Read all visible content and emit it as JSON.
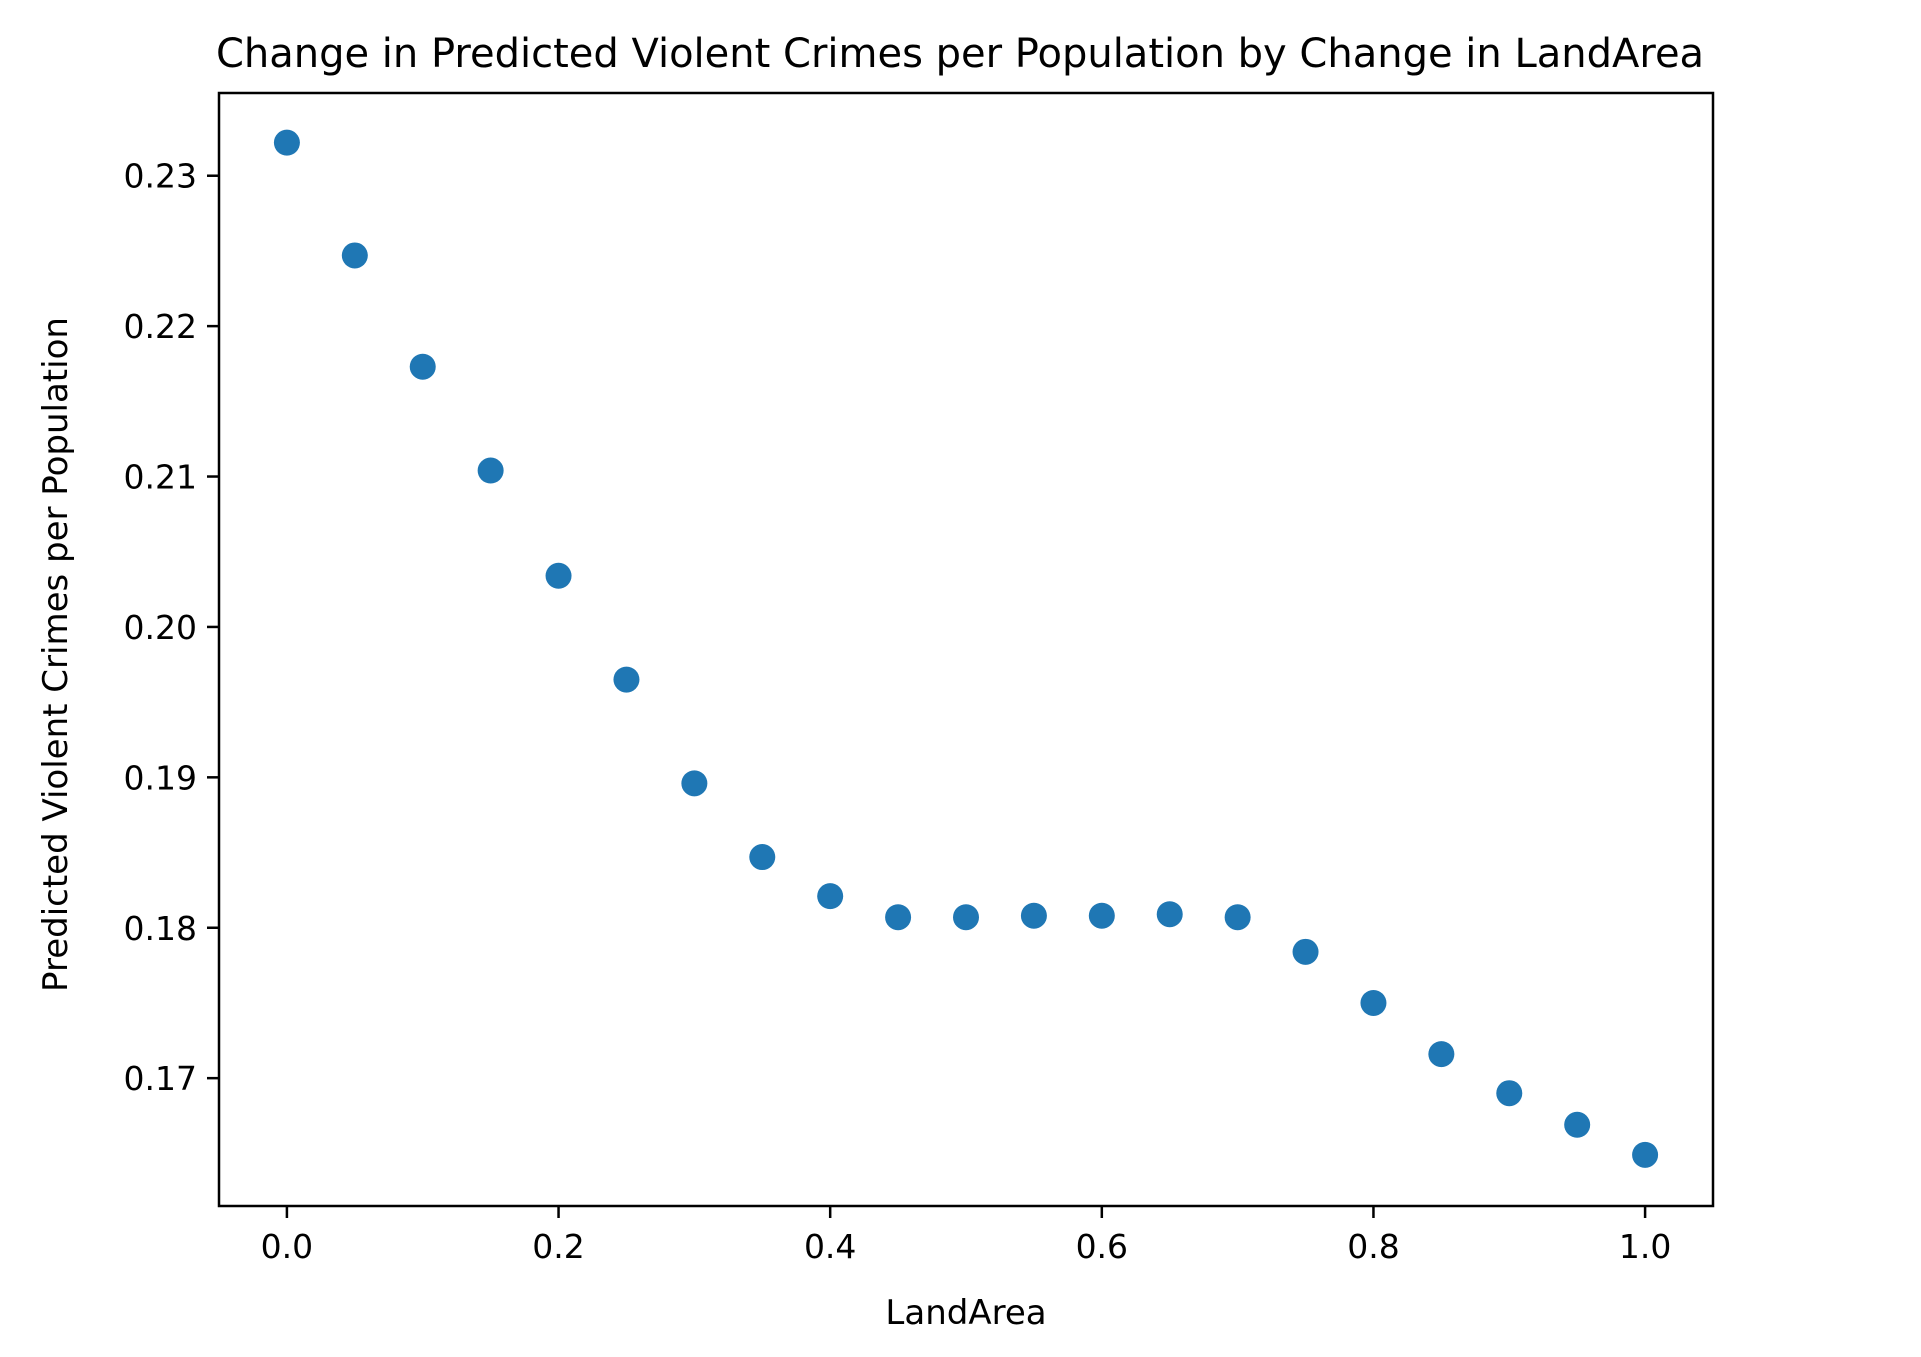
{
  "chart_data": {
    "type": "scatter",
    "title": "Change in Predicted Violent Crimes per Population by Change in LandArea",
    "xlabel": "LandArea",
    "ylabel": "Predicted Violent Crimes per Population",
    "xlim": [
      -0.05,
      1.05
    ],
    "ylim": [
      0.1615,
      0.2355
    ],
    "xticks": [
      0.0,
      0.2,
      0.4,
      0.6,
      0.8,
      1.0
    ],
    "xtick_labels": [
      "0.0",
      "0.2",
      "0.4",
      "0.6",
      "0.8",
      "1.0"
    ],
    "yticks": [
      0.17,
      0.18,
      0.19,
      0.2,
      0.21,
      0.22,
      0.23
    ],
    "ytick_labels": [
      "0.17",
      "0.18",
      "0.19",
      "0.20",
      "0.21",
      "0.22",
      "0.23"
    ],
    "grid": false,
    "marker_color": "#1f77b4",
    "x": [
      0.0,
      0.05,
      0.1,
      0.15,
      0.2,
      0.25,
      0.3,
      0.35,
      0.4,
      0.45,
      0.5,
      0.55,
      0.6,
      0.65,
      0.7,
      0.75,
      0.8,
      0.85,
      0.9,
      0.95,
      1.0
    ],
    "y": [
      0.2322,
      0.2247,
      0.2173,
      0.2104,
      0.2034,
      0.1965,
      0.1896,
      0.1847,
      0.1821,
      0.1807,
      0.1807,
      0.1808,
      0.1808,
      0.1809,
      0.1807,
      0.1784,
      0.175,
      0.1716,
      0.169,
      0.1669,
      0.1649
    ]
  }
}
